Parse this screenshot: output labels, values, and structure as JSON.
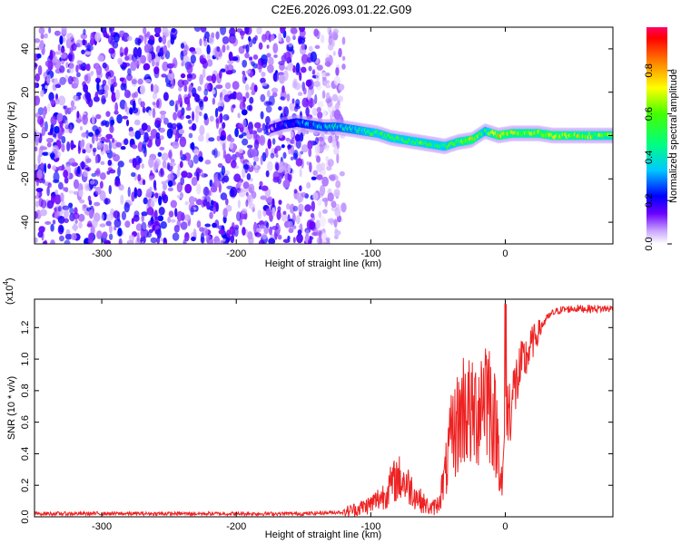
{
  "title": "C2E6.2026.093.01.22.G09",
  "chart_data": [
    {
      "type": "heatmap",
      "name": "spectrogram",
      "xlabel": "Height of straight line (km)",
      "ylabel": "Frequency (Hz)",
      "xlim": [
        -350,
        80
      ],
      "ylim": [
        -50,
        50
      ],
      "xticks": [
        -300,
        -200,
        -100,
        0
      ],
      "yticks": [
        -40,
        -20,
        0,
        20,
        40
      ],
      "noise_region": {
        "x_range": [
          -350,
          -120
        ],
        "y_range": [
          -50,
          50
        ],
        "typical_value": 0.12,
        "max_value": 0.3
      },
      "signal_track": {
        "x": [
          -175,
          -165,
          -155,
          -145,
          -135,
          -125,
          -115,
          -105,
          -95,
          -85,
          -75,
          -65,
          -55,
          -45,
          -35,
          -25,
          -15,
          -5,
          5,
          15,
          25,
          35,
          45,
          55,
          65,
          80
        ],
        "freq": [
          3,
          5,
          6,
          5,
          4,
          4,
          3,
          2,
          1,
          -1,
          -2,
          -3,
          -4,
          -5,
          -3,
          -2,
          2,
          0,
          1,
          1,
          1,
          0,
          0,
          0,
          0,
          0
        ],
        "amplitude": [
          0.12,
          0.2,
          0.25,
          0.3,
          0.32,
          0.35,
          0.4,
          0.45,
          0.48,
          0.5,
          0.5,
          0.52,
          0.5,
          0.48,
          0.55,
          0.7,
          0.45,
          0.75,
          0.65,
          0.65,
          0.65,
          0.7,
          0.65,
          0.65,
          0.62,
          0.6
        ]
      },
      "colorbar": {
        "label": "Normalized spectral amplitude",
        "range": [
          0,
          1
        ],
        "ticks": [
          "0.0",
          "0.2",
          "0.4",
          "0.6",
          "0.8"
        ],
        "tick_values": [
          0,
          0.2,
          0.4,
          0.6,
          0.8
        ],
        "colormap": "rainbow"
      }
    },
    {
      "type": "line",
      "name": "snr",
      "xlabel": "Height of straight line (km)",
      "ylabel": "SNR (10 * v/v)",
      "multiplier_label": "(x10",
      "multiplier_exponent": "4",
      "xlim": [
        -350,
        80
      ],
      "ylim": [
        0,
        1.38
      ],
      "xticks": [
        -300,
        -200,
        -100,
        0
      ],
      "yticks": [
        "0.0",
        "0.2",
        "0.4",
        "0.6",
        "0.8",
        "1.0",
        "1.2"
      ],
      "ytick_values": [
        0,
        0.2,
        0.4,
        0.6,
        0.8,
        1.0,
        1.2
      ],
      "color": "#ee2222",
      "x": [
        -350,
        -300,
        -250,
        -200,
        -150,
        -120,
        -110,
        -100,
        -90,
        -85,
        -80,
        -75,
        -70,
        -65,
        -60,
        -55,
        -50,
        -45,
        -40,
        -35,
        -30,
        -25,
        -20,
        -15,
        -10,
        -5,
        -2,
        0,
        5,
        10,
        15,
        20,
        25,
        30,
        35,
        40,
        50,
        60,
        70,
        80
      ],
      "values": [
        0.02,
        0.02,
        0.02,
        0.02,
        0.02,
        0.03,
        0.05,
        0.08,
        0.14,
        0.2,
        0.25,
        0.22,
        0.18,
        0.12,
        0.08,
        0.05,
        0.08,
        0.25,
        0.5,
        0.6,
        0.72,
        0.62,
        0.7,
        0.85,
        0.7,
        0.45,
        0.18,
        0.6,
        0.75,
        0.9,
        1.0,
        1.1,
        1.18,
        1.25,
        1.29,
        1.31,
        1.32,
        1.32,
        1.32,
        1.32
      ]
    }
  ]
}
